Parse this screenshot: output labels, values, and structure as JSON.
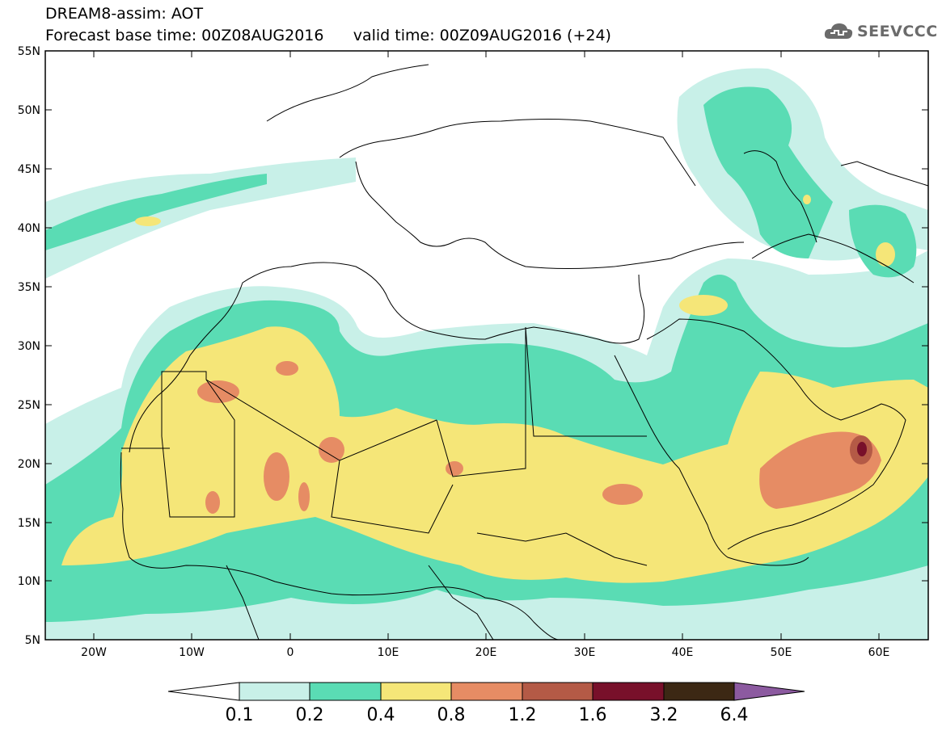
{
  "title_line1": "DREAM8-assim: AOT",
  "title_line2": "Forecast base time: 00Z08AUG2016      valid time: 00Z09AUG2016 (+24)",
  "logo_text": "SEEVCCC",
  "lat_labels": [
    "55N",
    "50N",
    "45N",
    "40N",
    "35N",
    "30N",
    "25N",
    "20N",
    "15N",
    "10N",
    "5N"
  ],
  "lon_labels": [
    "20W",
    "10W",
    "0",
    "10E",
    "20E",
    "30E",
    "40E",
    "50E",
    "60E"
  ],
  "colorbar": {
    "boundaries": [
      "0.1",
      "0.2",
      "0.4",
      "0.8",
      "1.2",
      "1.6",
      "3.2",
      "6.4"
    ],
    "colors": [
      "#c8f0e8",
      "#5adcb4",
      "#f5e678",
      "#e68c64",
      "#b45a46",
      "#78102a",
      "#3c2814",
      "#8c5aa0"
    ]
  },
  "colors": {
    "c01": "#c8f0e8",
    "c02": "#5adcb4",
    "c04": "#f5e678",
    "c08": "#e68c64",
    "c12": "#b45a46",
    "c16": "#78102a"
  }
}
